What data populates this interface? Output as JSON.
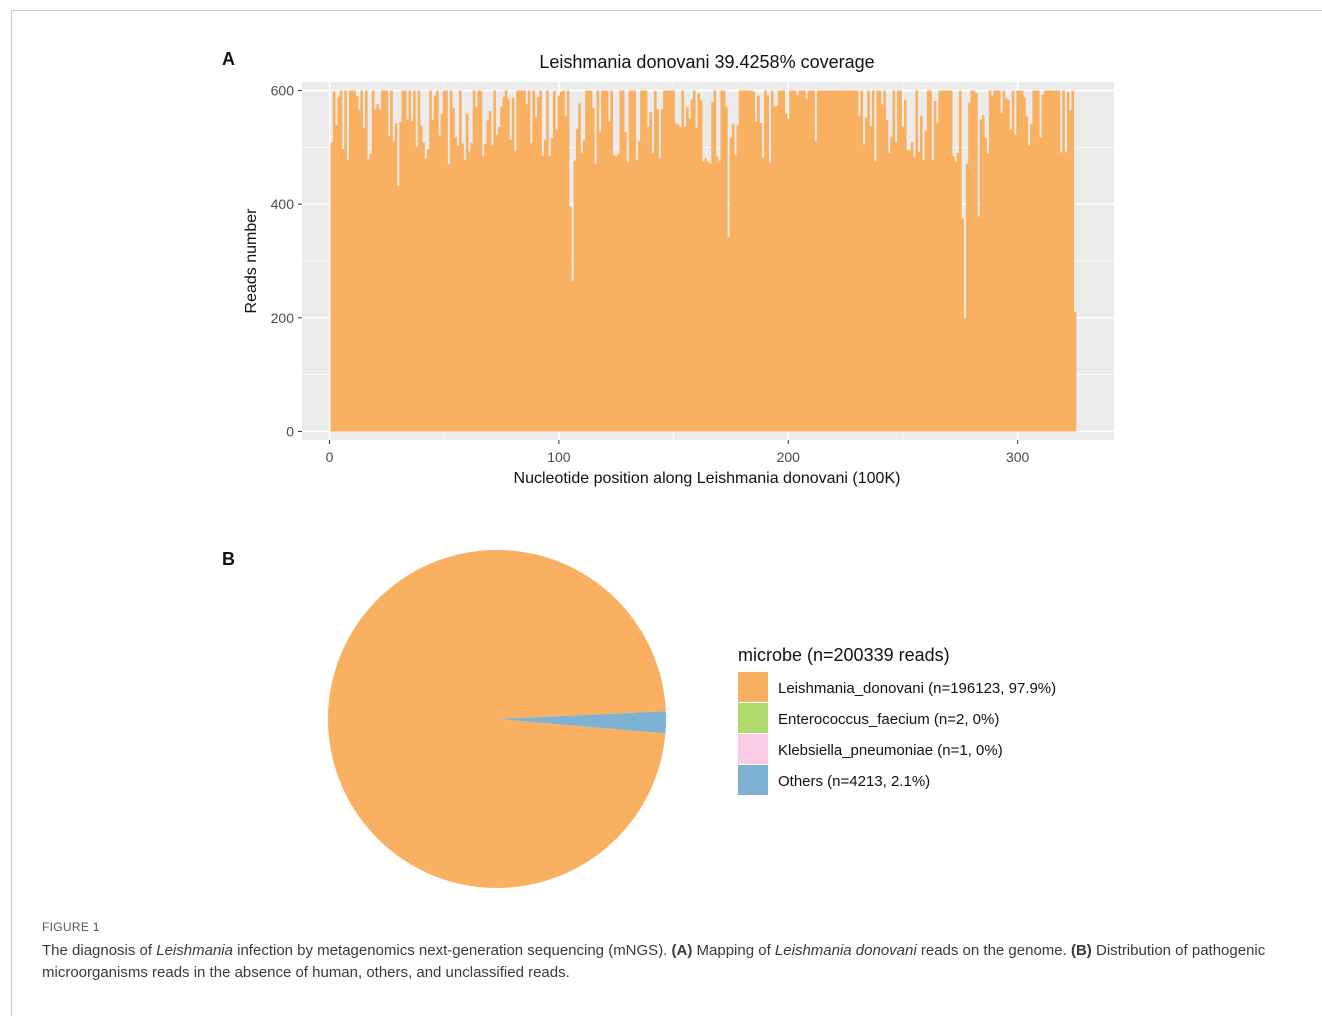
{
  "figure": {
    "label": "FIGURE 1",
    "caption": {
      "p1": "The diagnosis of ",
      "i1": "Leishmania",
      "p2": " infection by metagenomics next-generation sequencing (mNGS). ",
      "b1": "(A)",
      "p3": " Mapping of ",
      "i2": "Leishmania donovani",
      "p4": " reads on the genome. ",
      "b2": "(B)",
      "p5": " Distribution of pathogenic microorganisms reads in the absence of human, others, and unclassified reads."
    }
  },
  "colors": {
    "bar": "#F9B061",
    "panel_bg": "#EBEBEB",
    "grid": "#FFFFFF",
    "enterococcus": "#B0DA6E",
    "klebsiella": "#F9CCE5",
    "others": "#7FB1D3"
  },
  "chart_data": [
    {
      "panel": "A",
      "type": "bar",
      "title": "Leishmania donovani 39.4258% coverage",
      "xlabel": "Nucleotide position along Leishmania donovani  (100K)",
      "ylabel": "Reads number",
      "xlim": [
        -12,
        342
      ],
      "ylim": [
        -15,
        615
      ],
      "xticks": [
        0,
        100,
        200,
        300
      ],
      "yticks": [
        0,
        200,
        400,
        600
      ],
      "grid": true,
      "x_range": [
        1,
        325
      ],
      "cap": 600,
      "typical_min": 470,
      "capped_block": [
        213,
        230
      ],
      "dips": [
        {
          "x": 106,
          "y": 265
        },
        {
          "x": 105,
          "y": 395
        },
        {
          "x": 174,
          "y": 342
        },
        {
          "x": 277,
          "y": 200
        },
        {
          "x": 276,
          "y": 375
        },
        {
          "x": 283,
          "y": 378
        },
        {
          "x": 30,
          "y": 432
        },
        {
          "x": 325,
          "y": 210
        }
      ]
    },
    {
      "panel": "B",
      "type": "pie",
      "legend_title": "microbe (n=200339 reads)",
      "legend_position": "right",
      "slices": [
        {
          "label": "Leishmania_donovani (n=196123, 97.9%)",
          "value": 196123,
          "color": "#F9B061"
        },
        {
          "label": "Enterococcus_faecium (n=2, 0%)",
          "value": 2,
          "color": "#B0DA6E"
        },
        {
          "label": "Klebsiella_pneumoniae (n=1, 0%)",
          "value": 1,
          "color": "#F9CCE5"
        },
        {
          "label": "Others (n=4213, 2.1%)",
          "value": 4213,
          "color": "#7FB1D3"
        }
      ]
    }
  ]
}
